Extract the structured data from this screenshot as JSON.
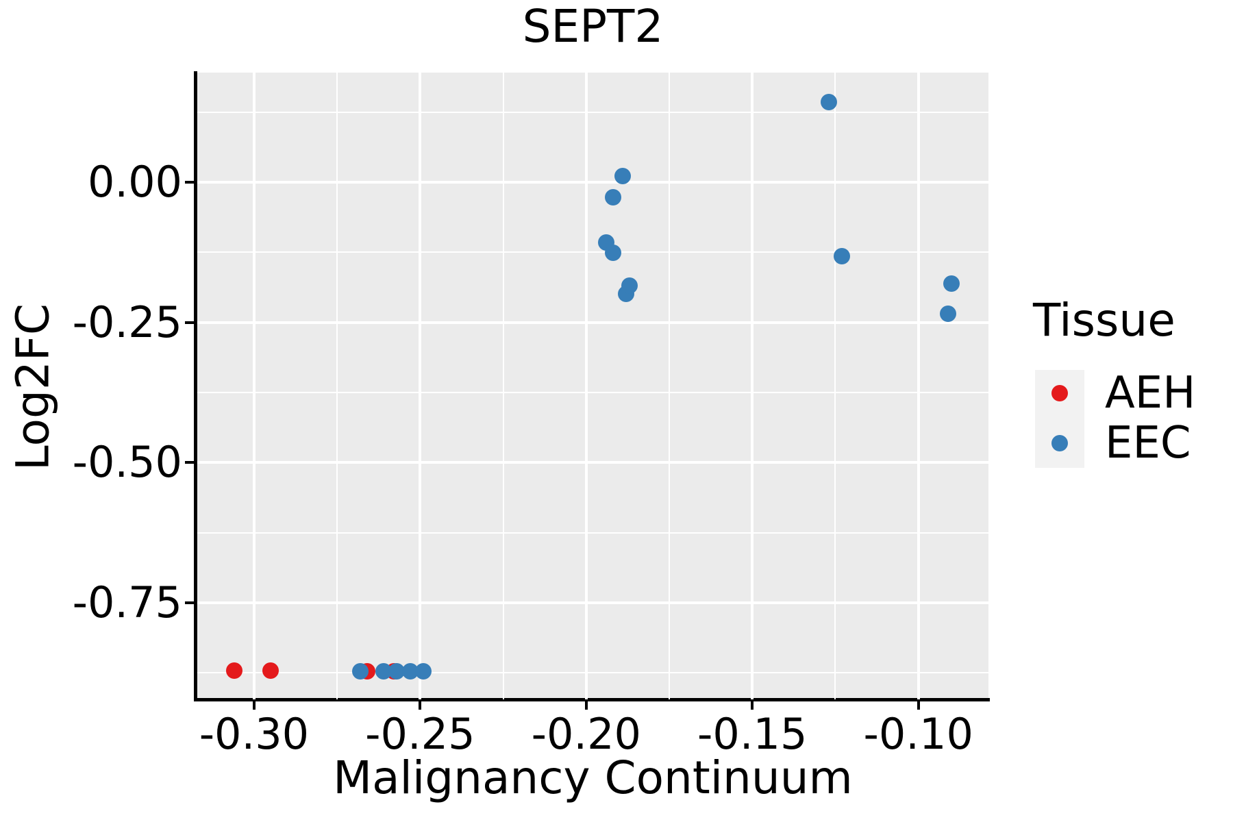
{
  "title": "SEPT2",
  "x_axis": {
    "label": "Malignancy Continuum",
    "tick_labels": [
      "-0.30",
      "-0.25",
      "-0.20",
      "-0.15",
      "-0.10"
    ]
  },
  "y_axis": {
    "label": "Log2FC",
    "tick_labels": [
      "0.00",
      "-0.25",
      "-0.50",
      "-0.75"
    ]
  },
  "legend": {
    "title": "Tissue",
    "items": [
      {
        "label": "AEH",
        "color": "#E41A1C"
      },
      {
        "label": "EEC",
        "color": "#377EB8"
      }
    ]
  },
  "colors": {
    "panel_background": "#EBEBEB",
    "gridline": "#FFFFFF",
    "axis_and_text": "#000000",
    "legend_key_background": "#F2F2F2",
    "aeh_red": "#E41A1C",
    "eec_blue": "#377EB8"
  },
  "chart_data": {
    "type": "scatter",
    "title": "SEPT2",
    "xlabel": "Malignancy Continuum",
    "ylabel": "Log2FC",
    "xlim": [
      -0.3171,
      -0.0789
    ],
    "ylim": [
      -0.9222,
      0.1954
    ],
    "x_tick_values": [
      -0.3,
      -0.25,
      -0.2,
      -0.15,
      -0.1
    ],
    "x_tick_labels": [
      "-0.30",
      "-0.25",
      "-0.20",
      "-0.15",
      "-0.10"
    ],
    "x_minor_ticks": [
      -0.275,
      -0.225,
      -0.175,
      -0.125
    ],
    "y_tick_values": [
      0.0,
      -0.25,
      -0.5,
      -0.75
    ],
    "y_tick_labels": [
      "0.00",
      "-0.25",
      "-0.50",
      "-0.75"
    ],
    "y_minor_ticks": [
      0.125,
      -0.125,
      -0.375,
      -0.625,
      -0.875
    ],
    "grid": "white major and minor gridlines on gray panel",
    "legend_position": "right",
    "series": [
      {
        "name": "AEH",
        "color": "#E41A1C",
        "points": [
          [
            -0.306,
            -0.871
          ],
          [
            -0.295,
            -0.871
          ],
          [
            -0.266,
            -0.872
          ],
          [
            -0.258,
            -0.872
          ]
        ]
      },
      {
        "name": "EEC",
        "color": "#377EB8",
        "points": [
          [
            -0.268,
            -0.872
          ],
          [
            -0.261,
            -0.872
          ],
          [
            -0.257,
            -0.872
          ],
          [
            -0.253,
            -0.872
          ],
          [
            -0.249,
            -0.872
          ],
          [
            -0.194,
            -0.107
          ],
          [
            -0.192,
            -0.126
          ],
          [
            -0.192,
            -0.027
          ],
          [
            -0.189,
            0.011
          ],
          [
            -0.188,
            -0.199
          ],
          [
            -0.187,
            -0.184
          ],
          [
            -0.127,
            0.143
          ],
          [
            -0.123,
            -0.132
          ],
          [
            -0.091,
            -0.234
          ],
          [
            -0.09,
            -0.181
          ]
        ]
      }
    ]
  }
}
